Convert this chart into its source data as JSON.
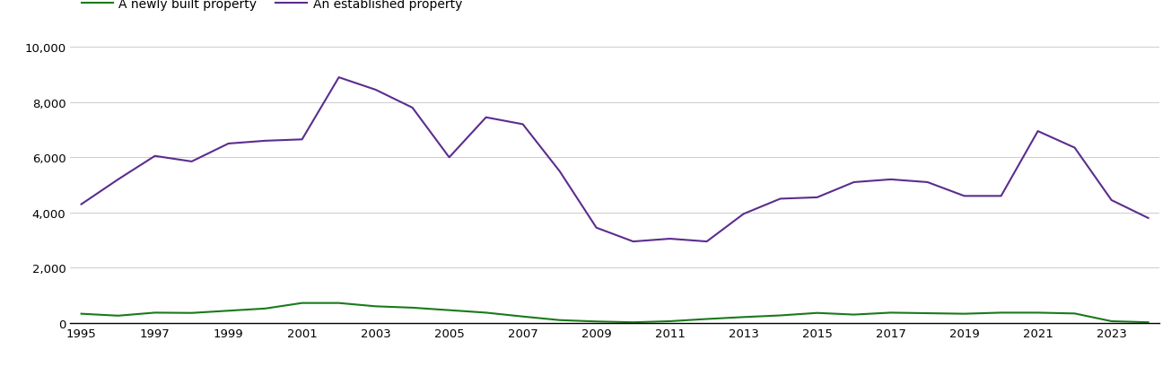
{
  "years": [
    1995,
    1996,
    1997,
    1998,
    1999,
    2000,
    2001,
    2002,
    2003,
    2004,
    2005,
    2006,
    2007,
    2008,
    2009,
    2010,
    2011,
    2012,
    2013,
    2014,
    2015,
    2016,
    2017,
    2018,
    2019,
    2020,
    2021,
    2022,
    2023,
    2024
  ],
  "established": [
    4300,
    5200,
    6050,
    5850,
    6500,
    6600,
    6650,
    8900,
    8450,
    7800,
    6000,
    7450,
    7200,
    5500,
    3450,
    2950,
    3050,
    2950,
    3950,
    4500,
    4550,
    5100,
    5200,
    5100,
    4600,
    4600,
    6950,
    6350,
    4450,
    3800
  ],
  "newly_built": [
    330,
    260,
    370,
    360,
    440,
    520,
    720,
    720,
    600,
    550,
    460,
    370,
    230,
    100,
    50,
    20,
    60,
    140,
    210,
    270,
    360,
    300,
    370,
    350,
    330,
    370,
    370,
    340,
    60,
    20
  ],
  "established_color": "#5b2d8e",
  "newly_built_color": "#1a7a1a",
  "background_color": "#ffffff",
  "plot_bg_color": "#ffffff",
  "legend_newly_built": "A newly built property",
  "legend_established": "An established property",
  "ylim": [
    0,
    10000
  ],
  "yticks": [
    0,
    2000,
    4000,
    6000,
    8000,
    10000
  ],
  "grid_color": "#cccccc",
  "line_width": 1.5,
  "tick_fontsize": 9.5
}
